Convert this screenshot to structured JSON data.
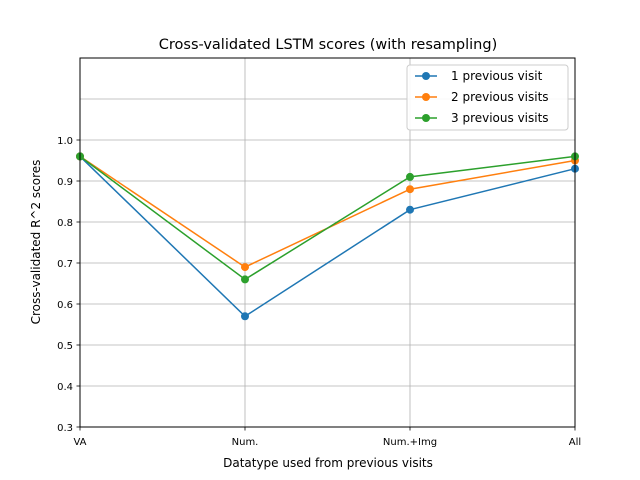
{
  "chart_data": {
    "type": "line",
    "title": "Cross-validated LSTM scores (with resampling)",
    "xlabel": "Datatype used from previous visits",
    "ylabel": "Cross-validated R^2 scores",
    "categories": [
      "VA",
      "Num.",
      "Num.+Img",
      "All"
    ],
    "yticks": [
      0.3,
      0.4,
      0.5,
      0.6,
      0.7,
      0.8,
      0.9,
      1.0
    ],
    "ylim": [
      0.3,
      1.2
    ],
    "grid": true,
    "legend_position": "top-right",
    "series": [
      {
        "name": "1 previous visit",
        "color": "#1f77b4",
        "values": [
          0.96,
          0.57,
          0.83,
          0.93
        ]
      },
      {
        "name": "2 previous visits",
        "color": "#ff7f0e",
        "values": [
          0.96,
          0.69,
          0.88,
          0.95
        ]
      },
      {
        "name": "3 previous visits",
        "color": "#2ca02c",
        "values": [
          0.96,
          0.66,
          0.91,
          0.96
        ]
      }
    ]
  }
}
